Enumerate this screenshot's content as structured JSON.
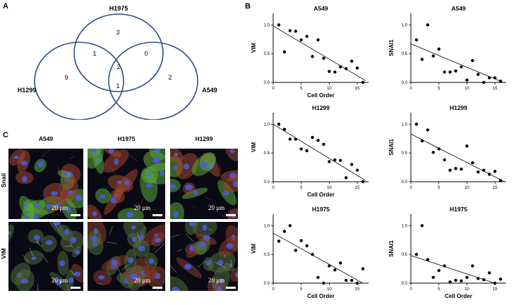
{
  "panels": {
    "a": "A",
    "b": "B",
    "c": "C"
  },
  "venn": {
    "sets": [
      {
        "label": "H1975",
        "color": "#2f4f86"
      },
      {
        "label": "H1299",
        "color": "#2f4f86"
      },
      {
        "label": "A549",
        "color": "#2f4f86"
      }
    ],
    "counts": {
      "h1975_only": "3",
      "h1299_h1975": "1",
      "h1975_a549": "0",
      "all_three": "2",
      "h1299_only": "9",
      "h1299_a549": "1",
      "a549_only": "2"
    }
  },
  "chart_data": [
    {
      "type": "scatter",
      "title": "A549",
      "xlabel": "Cell Order",
      "ylabel": "VIM",
      "xlim": [
        0,
        17
      ],
      "ylim": [
        0,
        1.2
      ],
      "xticks": [
        "0",
        "5",
        "10",
        "15"
      ],
      "yticks": [
        "0.0",
        "0.5",
        "1.0"
      ],
      "x": [
        1,
        2,
        3,
        4,
        5,
        6,
        7,
        8,
        9,
        10,
        11,
        12,
        13,
        14,
        15,
        16
      ],
      "y": [
        1.0,
        0.53,
        0.9,
        0.89,
        0.74,
        0.8,
        0.45,
        0.74,
        0.42,
        0.19,
        0.18,
        0.27,
        0.24,
        0.37,
        0.25,
        0.0
      ],
      "trend": [
        [
          0,
          0.98
        ],
        [
          16.5,
          0.03
        ]
      ]
    },
    {
      "type": "scatter",
      "title": "A549",
      "xlabel": "",
      "ylabel": "SNAI1",
      "xlim": [
        0,
        17
      ],
      "ylim": [
        0,
        1.2
      ],
      "xticks": [
        "0",
        "5",
        "10",
        "15"
      ],
      "yticks": [
        "0.0",
        "0.5",
        "1.0"
      ],
      "x": [
        1,
        2,
        3,
        4,
        5,
        6,
        7,
        8,
        9,
        10,
        11,
        12,
        13,
        14,
        15,
        16
      ],
      "y": [
        0.74,
        0.4,
        1.0,
        0.46,
        0.58,
        0.18,
        0.18,
        0.2,
        0.27,
        0.04,
        0.38,
        0.14,
        0.0,
        0.08,
        0.08,
        0.02
      ],
      "trend": [
        [
          0,
          0.67
        ],
        [
          16.5,
          0.0
        ]
      ]
    },
    {
      "type": "scatter",
      "title": "H1299",
      "xlabel": "Cell Order",
      "ylabel": "VIM",
      "xlim": [
        0,
        17
      ],
      "ylim": [
        0,
        1.2
      ],
      "xticks": [
        "0",
        "5",
        "10",
        "15"
      ],
      "yticks": [
        "0.0",
        "0.5",
        "1.0"
      ],
      "x": [
        1,
        2,
        3,
        4,
        5,
        6,
        7,
        8,
        9,
        10,
        11,
        12,
        13,
        14,
        15,
        16
      ],
      "y": [
        1.0,
        0.91,
        0.74,
        0.74,
        0.57,
        0.54,
        0.77,
        0.72,
        0.65,
        0.35,
        0.38,
        0.37,
        0.07,
        0.3,
        0.2,
        0.0
      ],
      "trend": [
        [
          0,
          1.0
        ],
        [
          16.5,
          0.02
        ]
      ]
    },
    {
      "type": "scatter",
      "title": "H1299",
      "xlabel": "",
      "ylabel": "SNAI1",
      "xlim": [
        0,
        17
      ],
      "ylim": [
        0,
        1.2
      ],
      "xticks": [
        "0",
        "5",
        "10",
        "15"
      ],
      "yticks": [
        "0.0",
        "0.5",
        "1.0"
      ],
      "x": [
        1,
        2,
        3,
        4,
        5,
        6,
        7,
        8,
        9,
        10,
        11,
        12,
        13,
        14,
        15,
        16
      ],
      "y": [
        1.0,
        0.71,
        0.9,
        0.51,
        0.57,
        0.38,
        0.2,
        0.23,
        0.22,
        0.62,
        0.33,
        0.17,
        0.2,
        0.13,
        0.18,
        0.02
      ],
      "trend": [
        [
          0,
          0.83
        ],
        [
          16.5,
          0.01
        ]
      ]
    },
    {
      "type": "scatter",
      "title": "H1975",
      "xlabel": "Cell Order",
      "ylabel": "VIM",
      "xlim": [
        0,
        17
      ],
      "ylim": [
        0,
        1.2
      ],
      "xticks": [
        "0",
        "5",
        "10",
        "15"
      ],
      "yticks": [
        "0.0",
        "0.5",
        "1.0"
      ],
      "x": [
        1,
        2,
        3,
        4,
        5,
        6,
        7,
        8,
        9,
        10,
        11,
        12,
        13,
        14,
        15,
        16
      ],
      "y": [
        0.73,
        0.9,
        1.0,
        0.57,
        0.74,
        0.65,
        0.5,
        0.1,
        0.0,
        0.3,
        0.23,
        0.35,
        0.05,
        0.05,
        0.0,
        0.25
      ],
      "trend": [
        [
          0,
          0.87
        ],
        [
          16,
          0.0
        ]
      ]
    },
    {
      "type": "scatter",
      "title": "H1975",
      "xlabel": "Cell Order",
      "ylabel": "SNAI1",
      "xlim": [
        0,
        17
      ],
      "ylim": [
        0,
        1.2
      ],
      "xticks": [
        "0",
        "5",
        "10",
        "15"
      ],
      "yticks": [
        "0.0",
        "0.5",
        "1.0"
      ],
      "x": [
        1,
        2,
        3,
        4,
        5,
        6,
        7,
        8,
        9,
        10,
        11,
        12,
        13,
        14,
        15,
        16
      ],
      "y": [
        0.5,
        1.0,
        0.41,
        0.1,
        0.22,
        0.3,
        0.02,
        0.05,
        0.04,
        0.1,
        0.3,
        0.08,
        0.06,
        0.18,
        0.0,
        0.07
      ],
      "trend": [
        [
          0,
          0.48
        ],
        [
          15,
          0.0
        ]
      ]
    }
  ],
  "micrographs": {
    "columns": [
      "A549",
      "H1975",
      "H1299"
    ],
    "rows": [
      "Snail",
      "VIM"
    ],
    "scale_label": "20 μm"
  }
}
